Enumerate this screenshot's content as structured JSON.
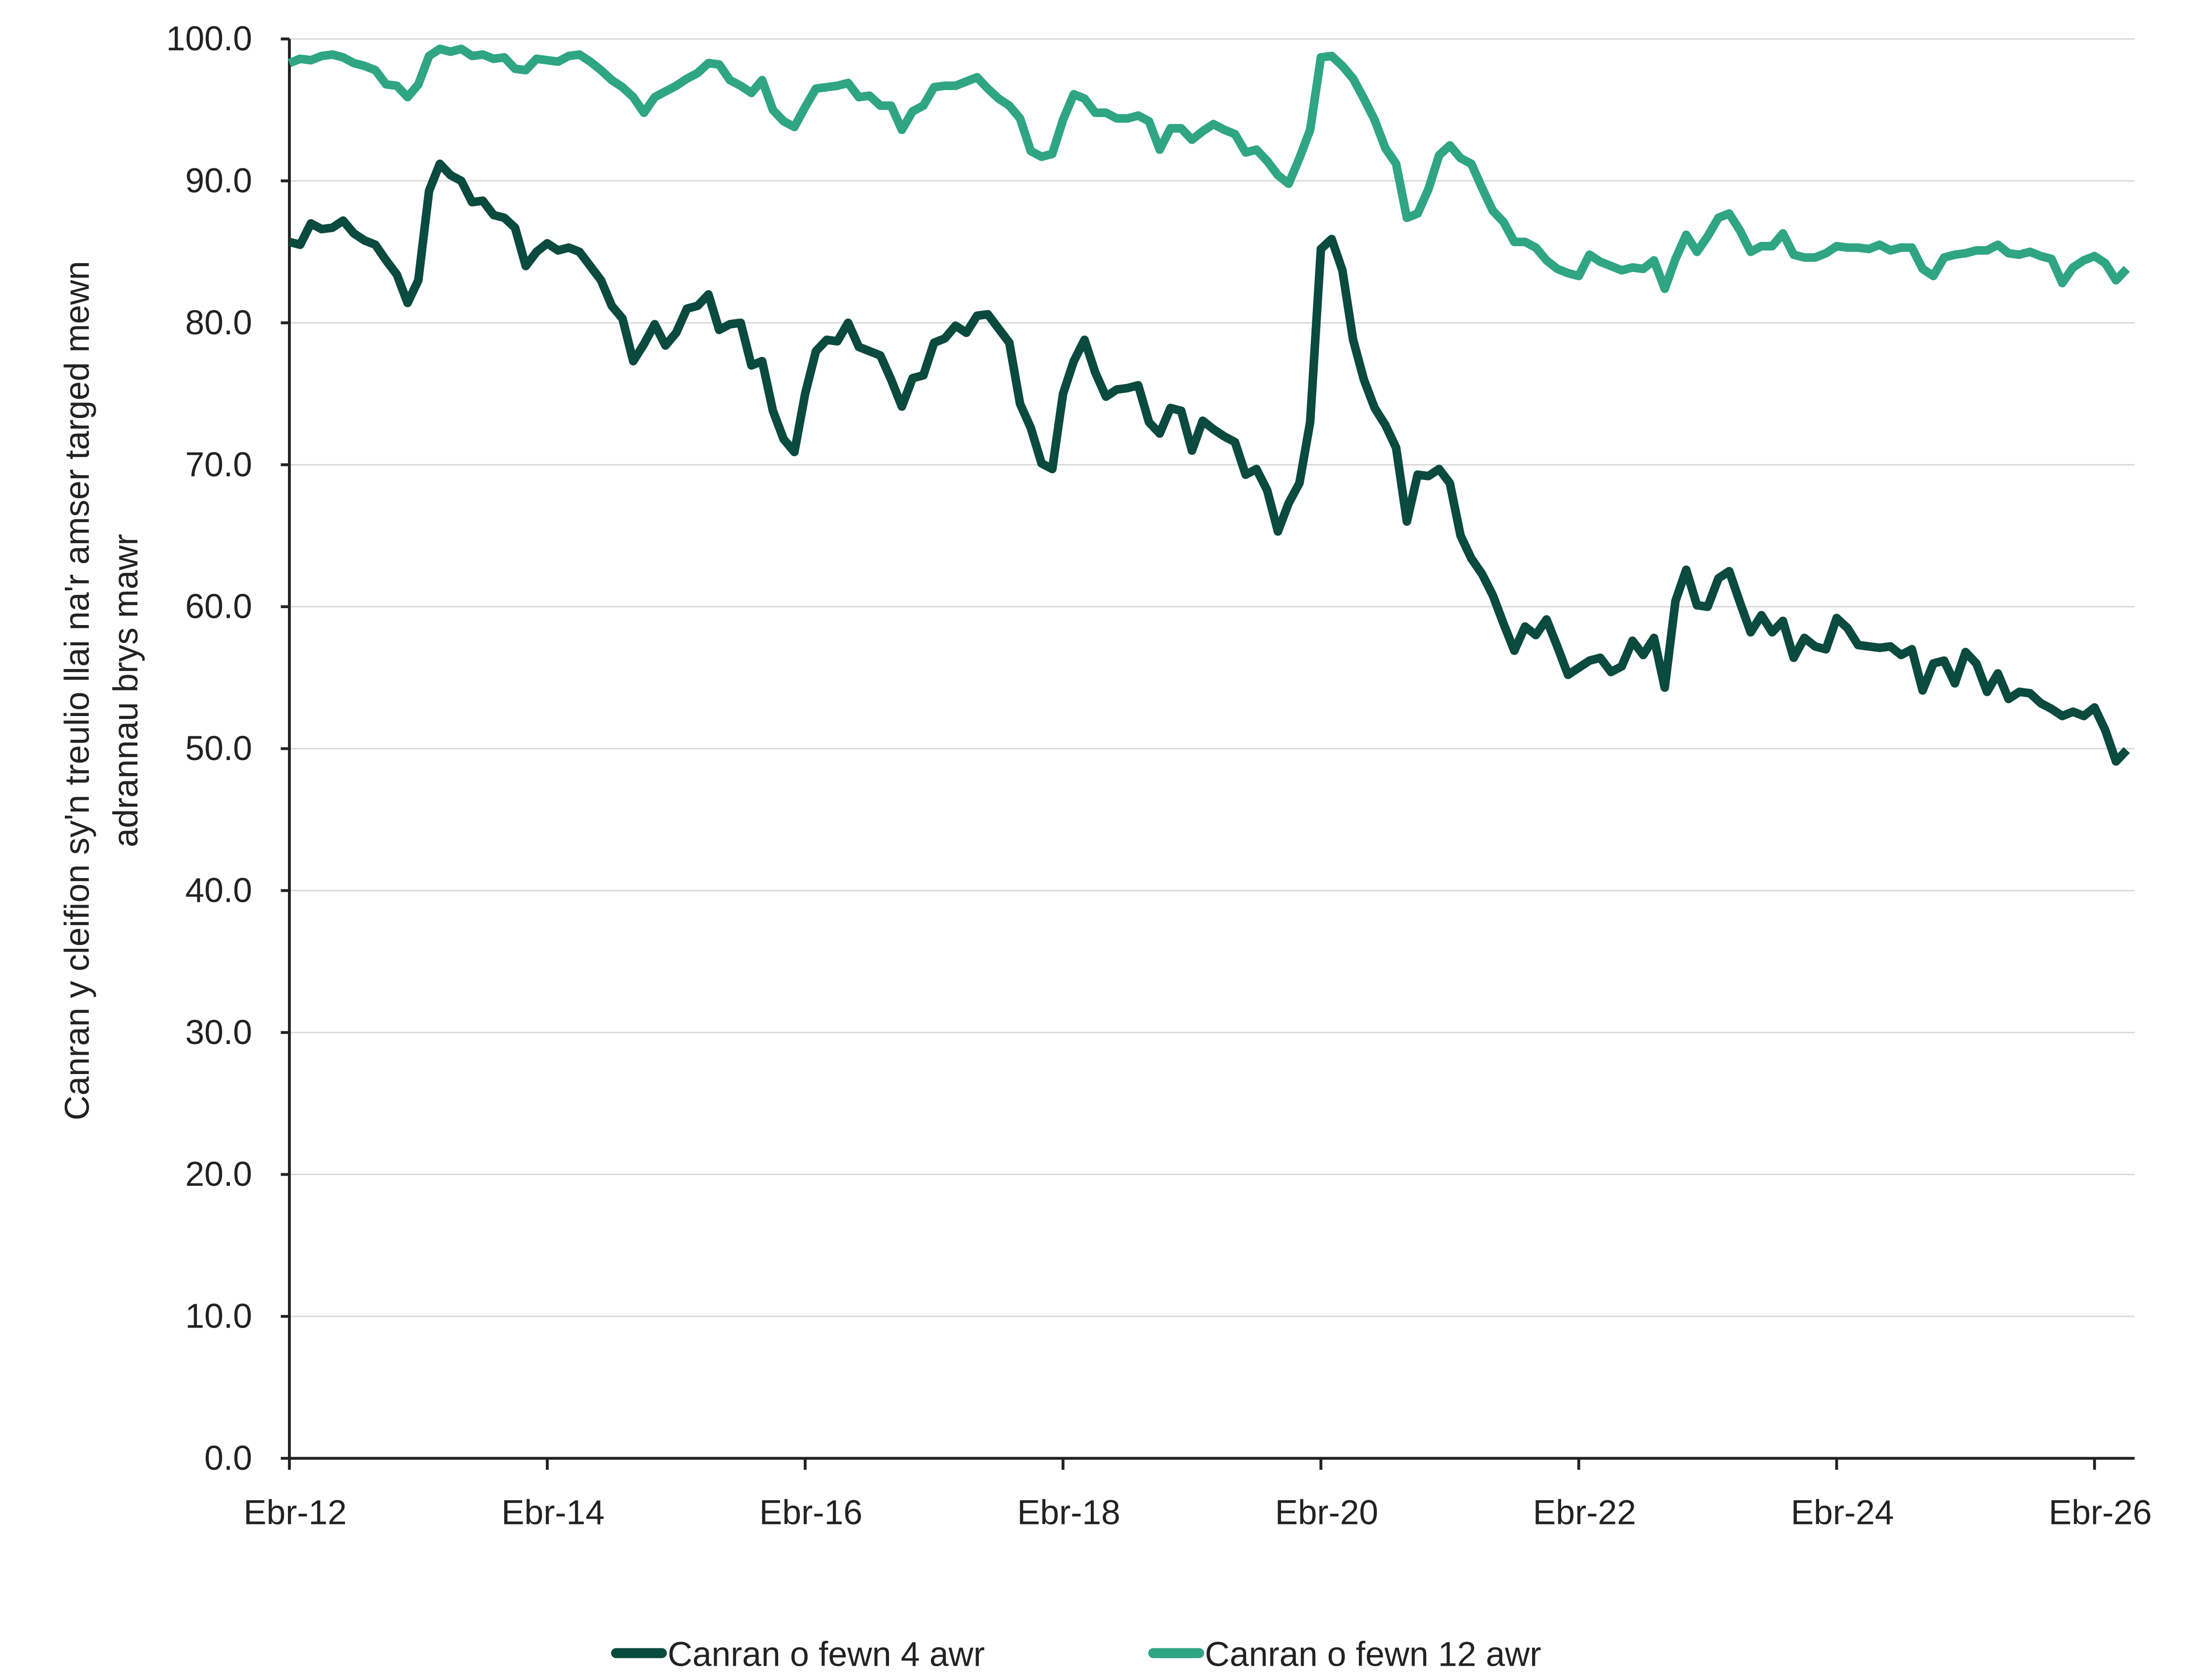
{
  "chart_data": {
    "type": "line",
    "ylabel": [
      "Canran y cleifion sy'n treulio llai na'r amser targed mewn",
      "adrannau brys mawr"
    ],
    "categories": [
      "Ebr-12",
      null,
      null,
      null,
      null,
      null,
      null,
      null,
      null,
      null,
      null,
      null,
      null,
      null,
      null,
      null,
      null,
      null,
      null,
      null,
      null,
      null,
      null,
      null,
      "Ebr-14",
      null,
      null,
      null,
      null,
      null,
      null,
      null,
      null,
      null,
      null,
      null,
      null,
      null,
      null,
      null,
      null,
      null,
      null,
      null,
      null,
      null,
      null,
      null,
      "Ebr-16",
      null,
      null,
      null,
      null,
      null,
      null,
      null,
      null,
      null,
      null,
      null,
      null,
      null,
      null,
      null,
      null,
      null,
      null,
      null,
      null,
      null,
      null,
      null,
      "Ebr-18",
      null,
      null,
      null,
      null,
      null,
      null,
      null,
      null,
      null,
      null,
      null,
      null,
      null,
      null,
      null,
      null,
      null,
      null,
      null,
      null,
      null,
      null,
      null,
      "Ebr-20",
      null,
      null,
      null,
      null,
      null,
      null,
      null,
      null,
      null,
      null,
      null,
      null,
      null,
      null,
      null,
      null,
      null,
      null,
      null,
      null,
      null,
      null,
      null,
      "Ebr-22",
      null,
      null,
      null,
      null,
      null,
      null,
      null,
      null,
      null,
      null,
      null,
      null,
      null,
      null,
      null,
      null,
      null,
      null,
      null,
      null,
      null,
      null,
      null,
      "Ebr-24",
      null,
      null,
      null,
      null,
      null,
      null,
      null,
      null,
      null,
      null,
      null,
      null,
      null,
      null,
      null,
      null,
      null,
      null,
      null,
      null,
      null,
      null,
      null,
      "Ebr-26",
      null,
      null,
      null
    ],
    "series": [
      {
        "name": "Canran o fewn 4 awr",
        "color": "#0b4a3f",
        "values": [
          85.7,
          85.5,
          87.0,
          86.6,
          86.7,
          87.2,
          86.3,
          85.8,
          85.5,
          84.4,
          83.4,
          81.4,
          83.0,
          89.3,
          91.2,
          90.4,
          90.0,
          88.5,
          88.6,
          87.6,
          87.4,
          86.7,
          84.0,
          85.0,
          85.6,
          85.1,
          85.3,
          85.0,
          84.0,
          83.0,
          81.2,
          80.3,
          77.3,
          78.5,
          79.9,
          78.4,
          79.3,
          81.0,
          81.2,
          82.0,
          79.5,
          79.9,
          80.0,
          77.0,
          77.3,
          73.8,
          71.8,
          70.9,
          75.0,
          78.0,
          78.8,
          78.7,
          80.0,
          78.3,
          78.0,
          77.7,
          76.0,
          74.1,
          76.1,
          76.3,
          78.6,
          78.9,
          79.8,
          79.3,
          80.5,
          80.6,
          79.6,
          78.6,
          74.3,
          72.6,
          70.1,
          69.7,
          75.0,
          77.3,
          78.8,
          76.5,
          74.8,
          75.3,
          75.4,
          75.6,
          73.0,
          72.2,
          74.0,
          73.8,
          71.0,
          73.1,
          72.5,
          72.0,
          71.6,
          69.3,
          69.7,
          68.2,
          65.3,
          67.3,
          68.7,
          73.0,
          85.2,
          85.9,
          83.7,
          78.8,
          76.0,
          74.0,
          72.8,
          71.2,
          66.0,
          69.3,
          69.2,
          69.7,
          68.7,
          65.0,
          63.4,
          62.3,
          60.8,
          58.8,
          56.9,
          58.6,
          58.0,
          59.1,
          57.2,
          55.2,
          55.7,
          56.2,
          56.4,
          55.4,
          55.8,
          57.6,
          56.6,
          57.8,
          54.3,
          60.4,
          62.6,
          60.1,
          60.0,
          62.0,
          62.5,
          60.3,
          58.2,
          59.4,
          58.2,
          59.0,
          56.4,
          57.8,
          57.2,
          57.0,
          59.2,
          58.5,
          57.3,
          57.2,
          57.1,
          57.2,
          56.6,
          57.0,
          54.1,
          56.0,
          56.2,
          54.6,
          56.8,
          56.0,
          54.0,
          55.3,
          53.5,
          54.0,
          53.9,
          53.2,
          52.8,
          52.3,
          52.6,
          52.3,
          52.9,
          51.3,
          49.1,
          49.9
        ]
      },
      {
        "name": "Canran o fewn 12 awr",
        "color": "#2fa583",
        "values": [
          98.3,
          98.6,
          98.5,
          98.8,
          98.9,
          98.7,
          98.3,
          98.1,
          97.8,
          96.8,
          96.7,
          95.9,
          96.8,
          98.8,
          99.3,
          99.1,
          99.3,
          98.8,
          98.9,
          98.6,
          98.7,
          97.9,
          97.8,
          98.6,
          98.5,
          98.4,
          98.8,
          98.9,
          98.4,
          97.8,
          97.1,
          96.6,
          95.9,
          94.8,
          95.9,
          96.3,
          96.7,
          97.2,
          97.6,
          98.3,
          98.2,
          97.1,
          96.7,
          96.2,
          97.1,
          95.0,
          94.2,
          93.8,
          95.2,
          96.5,
          96.6,
          96.7,
          96.9,
          95.9,
          96.0,
          95.3,
          95.3,
          93.6,
          94.9,
          95.3,
          96.6,
          96.7,
          96.7,
          97.0,
          97.3,
          96.5,
          95.8,
          95.3,
          94.4,
          92.1,
          91.7,
          91.9,
          94.3,
          96.1,
          95.8,
          94.8,
          94.8,
          94.4,
          94.4,
          94.6,
          94.2,
          92.2,
          93.7,
          93.7,
          92.9,
          93.5,
          94.0,
          93.6,
          93.3,
          92.0,
          92.2,
          91.4,
          90.4,
          89.8,
          91.6,
          93.6,
          98.7,
          98.8,
          98.1,
          97.2,
          95.8,
          94.3,
          92.3,
          91.2,
          87.4,
          87.7,
          89.4,
          91.8,
          92.5,
          91.6,
          91.2,
          89.5,
          87.9,
          87.1,
          85.7,
          85.7,
          85.3,
          84.4,
          83.8,
          83.5,
          83.3,
          84.8,
          84.3,
          84.0,
          83.7,
          83.9,
          83.8,
          84.4,
          82.4,
          84.5,
          86.2,
          85.0,
          86.1,
          87.4,
          87.7,
          86.5,
          85.0,
          85.4,
          85.4,
          86.3,
          84.8,
          84.6,
          84.6,
          84.9,
          85.4,
          85.3,
          85.3,
          85.2,
          85.5,
          85.1,
          85.3,
          85.3,
          83.8,
          83.3,
          84.6,
          84.8,
          84.9,
          85.1,
          85.1,
          85.5,
          84.9,
          84.8,
          85.0,
          84.7,
          84.5,
          82.8,
          83.9,
          84.4,
          84.7,
          84.2,
          83.0,
          83.8
        ]
      }
    ],
    "ylim": [
      0,
      100
    ],
    "yticks": [
      {
        "value": 0,
        "label": "0.0"
      },
      {
        "value": 10,
        "label": "10.0"
      },
      {
        "value": 20,
        "label": "20.0"
      },
      {
        "value": 30,
        "label": "30.0"
      },
      {
        "value": 40,
        "label": "40.0"
      },
      {
        "value": 50,
        "label": "50.0"
      },
      {
        "value": 60,
        "label": "60.0"
      },
      {
        "value": 70,
        "label": "70.0"
      },
      {
        "value": 80,
        "label": "80.0"
      },
      {
        "value": 90,
        "label": "90.0"
      },
      {
        "value": 100,
        "label": "100.0"
      }
    ],
    "grid": true,
    "legend": "bottom"
  }
}
